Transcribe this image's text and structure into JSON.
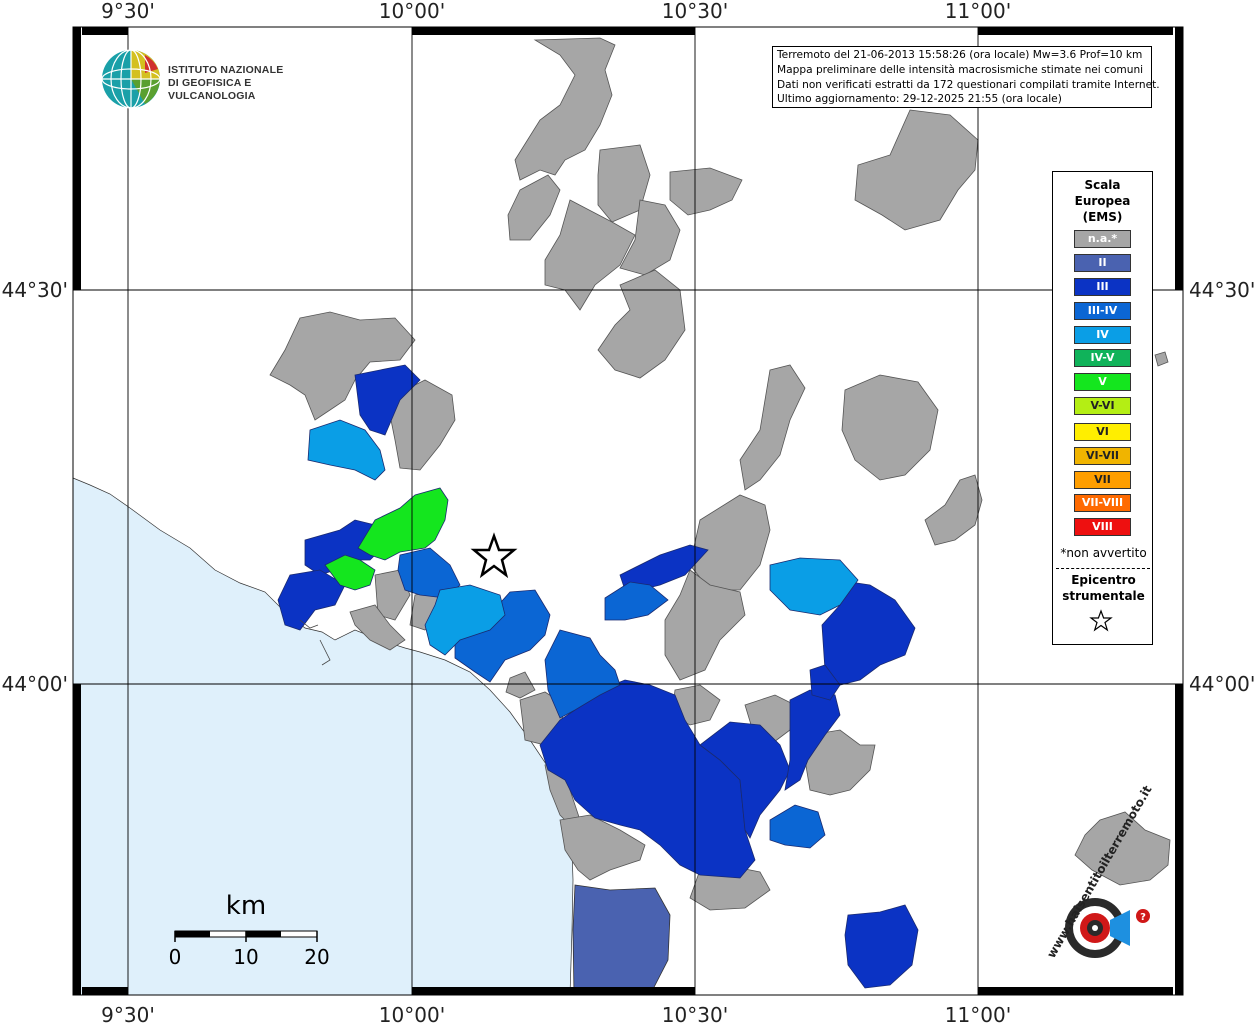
{
  "map": {
    "longitude_ticks": [
      "9°30'",
      "10°00'",
      "10°30'",
      "11°00'"
    ],
    "latitude_ticks": [
      "44°30'",
      "44°00'"
    ],
    "scale_bar": {
      "unit": "km",
      "labels": [
        "0",
        "10",
        "20"
      ]
    }
  },
  "info": {
    "line1": "Terremoto del 21-06-2013 15:58:26 (ora locale) Mw=3.6 Prof=10 km",
    "line2": "Mappa preliminare delle intensità macrosismiche stimate nei comuni",
    "line3": "Dati non verificati estratti da 172 questionari compilati tramite Internet.",
    "line4": "Ultimo aggiornamento: 29-12-2025 21:55 (ora locale)"
  },
  "logo": {
    "line1": "ISTITUTO NAZIONALE",
    "line2": "DI GEOFISICA E VULCANOLOGIA"
  },
  "legend": {
    "title_line1": "Scala",
    "title_line2": "Europea",
    "title_line3": "(EMS)",
    "items": [
      {
        "label": "n.a.*",
        "color": "#a6a6a6"
      },
      {
        "label": "II",
        "color": "#4a62b0"
      },
      {
        "label": "III",
        "color": "#0b33c4"
      },
      {
        "label": "III-IV",
        "color": "#0b66d4"
      },
      {
        "label": "IV",
        "color": "#0a9ee6"
      },
      {
        "label": "IV-V",
        "color": "#10b35a"
      },
      {
        "label": "V",
        "color": "#14e61e"
      },
      {
        "label": "V-VI",
        "color": "#b4ee14"
      },
      {
        "label": "VI",
        "color": "#ffee00"
      },
      {
        "label": "VI-VII",
        "color": "#f0b400"
      },
      {
        "label": "VII",
        "color": "#ff9e00"
      },
      {
        "label": "VII-VIII",
        "color": "#ff6a00"
      },
      {
        "label": "VIII",
        "color": "#ee1010"
      }
    ],
    "note": "*non avvertito",
    "epicenter_line1": "Epicentro",
    "epicenter_line2": "strumentale"
  },
  "watermark": {
    "text": "www.haisentitoilterremoto.it"
  },
  "colors": {
    "sea": "#dff0fb",
    "na": "#a6a6a6",
    "ii": "#4a62b0",
    "iii": "#0b33c4",
    "iii_iv": "#0b66d4",
    "iv": "#0a9ee6",
    "v": "#14e61e"
  }
}
